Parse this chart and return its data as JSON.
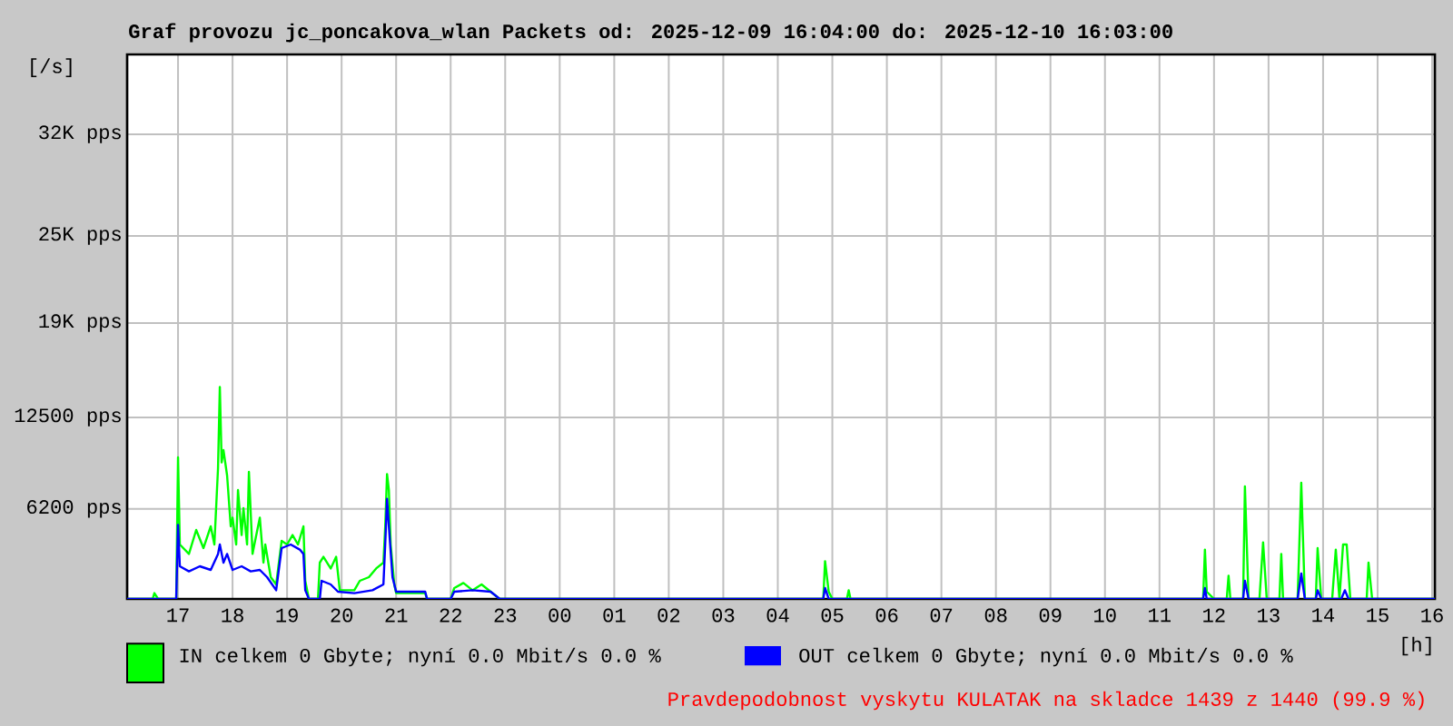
{
  "chart_data": {
    "type": "line",
    "title": "Graf provozu jc_poncakova_wlan Packets od: 2025-12-09 16:04:00 do: 2025-12-10 16:03:00",
    "xlabel": "[h]",
    "xlim": [
      "2025-12-09T16:04",
      "2025-12-10T16:03"
    ],
    "xticks": [
      {
        "value": "2025-12-09T17:00",
        "label": "17"
      },
      {
        "value": "2025-12-09T18:00",
        "label": "18"
      },
      {
        "value": "2025-12-09T19:00",
        "label": "19"
      },
      {
        "value": "2025-12-09T20:00",
        "label": "20"
      },
      {
        "value": "2025-12-09T21:00",
        "label": "21"
      },
      {
        "value": "2025-12-09T22:00",
        "label": "22"
      },
      {
        "value": "2025-12-09T23:00",
        "label": "23"
      },
      {
        "value": "2025-12-10T00:00",
        "label": "00"
      },
      {
        "value": "2025-12-10T01:00",
        "label": "01"
      },
      {
        "value": "2025-12-10T02:00",
        "label": "02"
      },
      {
        "value": "2025-12-10T03:00",
        "label": "03"
      },
      {
        "value": "2025-12-10T04:00",
        "label": "04"
      },
      {
        "value": "2025-12-10T05:00",
        "label": "05"
      },
      {
        "value": "2025-12-10T06:00",
        "label": "06"
      },
      {
        "value": "2025-12-10T07:00",
        "label": "07"
      },
      {
        "value": "2025-12-10T08:00",
        "label": "08"
      },
      {
        "value": "2025-12-10T09:00",
        "label": "09"
      },
      {
        "value": "2025-12-10T10:00",
        "label": "10"
      },
      {
        "value": "2025-12-10T11:00",
        "label": "11"
      },
      {
        "value": "2025-12-10T12:00",
        "label": "12"
      },
      {
        "value": "2025-12-10T13:00",
        "label": "13"
      },
      {
        "value": "2025-12-10T14:00",
        "label": "14"
      },
      {
        "value": "2025-12-10T15:00",
        "label": "15"
      },
      {
        "value": "2025-12-10T16:00",
        "label": "16"
      }
    ],
    "ylim": [
      0,
      37500
    ],
    "yticks": [
      {
        "value": 6200,
        "label": "6200 pps"
      },
      {
        "value": 12500,
        "label": "12500 pps"
      },
      {
        "value": 19000,
        "label": "19K pps"
      },
      {
        "value": 25000,
        "label": "25K pps"
      },
      {
        "value": 32000,
        "label": "32K pps"
      }
    ],
    "grid": true,
    "legend": "bottom",
    "series": [
      {
        "name": "IN celkem 0 Gbyte; nyní    0.0 Mbit/s 0.0 %",
        "color": "#00ff00",
        "x": [
          "2025-12-09T16:04",
          "2025-12-09T16:32",
          "2025-12-09T16:34",
          "2025-12-09T16:38",
          "2025-12-09T16:58",
          "2025-12-09T17:00",
          "2025-12-09T17:02",
          "2025-12-09T17:12",
          "2025-12-09T17:20",
          "2025-12-09T17:28",
          "2025-12-09T17:36",
          "2025-12-09T17:40",
          "2025-12-09T17:44",
          "2025-12-09T17:46",
          "2025-12-09T17:48",
          "2025-12-09T17:50",
          "2025-12-09T17:54",
          "2025-12-09T17:58",
          "2025-12-09T18:00",
          "2025-12-09T18:04",
          "2025-12-09T18:06",
          "2025-12-09T18:10",
          "2025-12-09T18:12",
          "2025-12-09T18:16",
          "2025-12-09T18:18",
          "2025-12-09T18:22",
          "2025-12-09T18:24",
          "2025-12-09T18:30",
          "2025-12-09T18:34",
          "2025-12-09T18:36",
          "2025-12-09T18:42",
          "2025-12-09T18:48",
          "2025-12-09T18:54",
          "2025-12-09T19:00",
          "2025-12-09T19:06",
          "2025-12-09T19:12",
          "2025-12-09T19:18",
          "2025-12-09T19:20",
          "2025-12-09T19:24",
          "2025-12-09T19:34",
          "2025-12-09T19:36",
          "2025-12-09T19:40",
          "2025-12-09T19:48",
          "2025-12-09T19:54",
          "2025-12-09T19:58",
          "2025-12-09T20:14",
          "2025-12-09T20:20",
          "2025-12-09T20:30",
          "2025-12-09T20:38",
          "2025-12-09T20:46",
          "2025-12-09T20:48",
          "2025-12-09T20:50",
          "2025-12-09T20:52",
          "2025-12-09T20:54",
          "2025-12-09T20:58",
          "2025-12-09T21:00",
          "2025-12-09T21:32",
          "2025-12-09T21:34",
          "2025-12-09T22:00",
          "2025-12-09T22:04",
          "2025-12-09T22:14",
          "2025-12-09T22:24",
          "2025-12-09T22:34",
          "2025-12-09T22:44",
          "2025-12-09T22:54",
          "2025-12-10T04:50",
          "2025-12-10T04:52",
          "2025-12-10T04:56",
          "2025-12-10T05:00",
          "2025-12-10T05:16",
          "2025-12-10T05:18",
          "2025-12-10T05:20",
          "2025-12-10T11:48",
          "2025-12-10T11:50",
          "2025-12-10T11:52",
          "2025-12-10T12:00",
          "2025-12-10T12:14",
          "2025-12-10T12:16",
          "2025-12-10T12:18",
          "2025-12-10T12:32",
          "2025-12-10T12:34",
          "2025-12-10T12:38",
          "2025-12-10T12:50",
          "2025-12-10T12:54",
          "2025-12-10T12:58",
          "2025-12-10T13:12",
          "2025-12-10T13:14",
          "2025-12-10T13:16",
          "2025-12-10T13:32",
          "2025-12-10T13:36",
          "2025-12-10T13:40",
          "2025-12-10T13:52",
          "2025-12-10T13:54",
          "2025-12-10T13:58",
          "2025-12-10T14:10",
          "2025-12-10T14:14",
          "2025-12-10T14:18",
          "2025-12-10T14:22",
          "2025-12-10T14:26",
          "2025-12-10T14:30",
          "2025-12-10T14:48",
          "2025-12-10T14:50",
          "2025-12-10T14:54",
          "2025-12-10T16:03"
        ],
        "values": [
          0,
          0,
          400,
          0,
          0,
          9750,
          3750,
          3100,
          4750,
          3500,
          5000,
          3750,
          9000,
          14600,
          9400,
          10250,
          8500,
          5000,
          5600,
          3750,
          7500,
          4400,
          6250,
          3750,
          8750,
          3100,
          3750,
          5600,
          2500,
          3750,
          1500,
          1000,
          4000,
          3750,
          4400,
          3750,
          5000,
          1250,
          0,
          0,
          2500,
          2900,
          2100,
          2900,
          600,
          600,
          1250,
          1500,
          2100,
          2500,
          5000,
          8600,
          7500,
          3750,
          1000,
          400,
          400,
          0,
          0,
          750,
          1100,
          600,
          1000,
          500,
          0,
          0,
          2600,
          500,
          0,
          0,
          600,
          0,
          0,
          3400,
          500,
          0,
          0,
          1600,
          0,
          0,
          7750,
          0,
          0,
          3900,
          0,
          0,
          3100,
          0,
          0,
          8000,
          0,
          0,
          3500,
          0,
          0,
          3400,
          0,
          3750,
          3750,
          0,
          0,
          2500,
          0,
          0
        ]
      },
      {
        "name": "OUT celkem 0 Gbyte; nyní    0.0 Mbit/s 0.0 %",
        "color": "#0000ff",
        "x": [
          "2025-12-09T16:04",
          "2025-12-09T16:58",
          "2025-12-09T17:00",
          "2025-12-09T17:02",
          "2025-12-09T17:12",
          "2025-12-09T17:24",
          "2025-12-09T17:36",
          "2025-12-09T17:44",
          "2025-12-09T17:46",
          "2025-12-09T17:50",
          "2025-12-09T17:54",
          "2025-12-09T18:00",
          "2025-12-09T18:10",
          "2025-12-09T18:20",
          "2025-12-09T18:30",
          "2025-12-09T18:38",
          "2025-12-09T18:48",
          "2025-12-09T18:54",
          "2025-12-09T19:04",
          "2025-12-09T19:14",
          "2025-12-09T19:18",
          "2025-12-09T19:20",
          "2025-12-09T19:24",
          "2025-12-09T19:36",
          "2025-12-09T19:38",
          "2025-12-09T19:48",
          "2025-12-09T19:56",
          "2025-12-09T20:14",
          "2025-12-09T20:34",
          "2025-12-09T20:46",
          "2025-12-09T20:48",
          "2025-12-09T20:50",
          "2025-12-09T20:52",
          "2025-12-09T20:56",
          "2025-12-09T21:00",
          "2025-12-09T21:32",
          "2025-12-09T21:34",
          "2025-12-09T22:00",
          "2025-12-09T22:04",
          "2025-12-09T22:24",
          "2025-12-09T22:44",
          "2025-12-09T22:54",
          "2025-12-10T04:50",
          "2025-12-10T04:52",
          "2025-12-10T04:56",
          "2025-12-10T11:48",
          "2025-12-10T11:50",
          "2025-12-10T11:52",
          "2025-12-10T12:32",
          "2025-12-10T12:34",
          "2025-12-10T12:38",
          "2025-12-10T13:32",
          "2025-12-10T13:36",
          "2025-12-10T13:40",
          "2025-12-10T13:52",
          "2025-12-10T13:54",
          "2025-12-10T13:58",
          "2025-12-10T14:20",
          "2025-12-10T14:24",
          "2025-12-10T14:28",
          "2025-12-10T16:03"
        ],
        "values": [
          0,
          0,
          5100,
          2250,
          1900,
          2250,
          2000,
          3100,
          3750,
          2500,
          3100,
          2000,
          2250,
          1900,
          2000,
          1500,
          600,
          3500,
          3750,
          3400,
          3100,
          600,
          0,
          0,
          1250,
          1000,
          500,
          400,
          600,
          1000,
          3750,
          6900,
          5000,
          1500,
          500,
          500,
          0,
          0,
          500,
          600,
          500,
          0,
          0,
          750,
          0,
          0,
          750,
          0,
          0,
          1250,
          0,
          0,
          1750,
          0,
          0,
          600,
          0,
          0,
          600,
          0,
          0
        ]
      }
    ],
    "annotations": [
      "[/s]",
      "Pravdepodobnost vyskytu KULATAK na skladce 1439 z 1440 (99.9 %)"
    ]
  }
}
